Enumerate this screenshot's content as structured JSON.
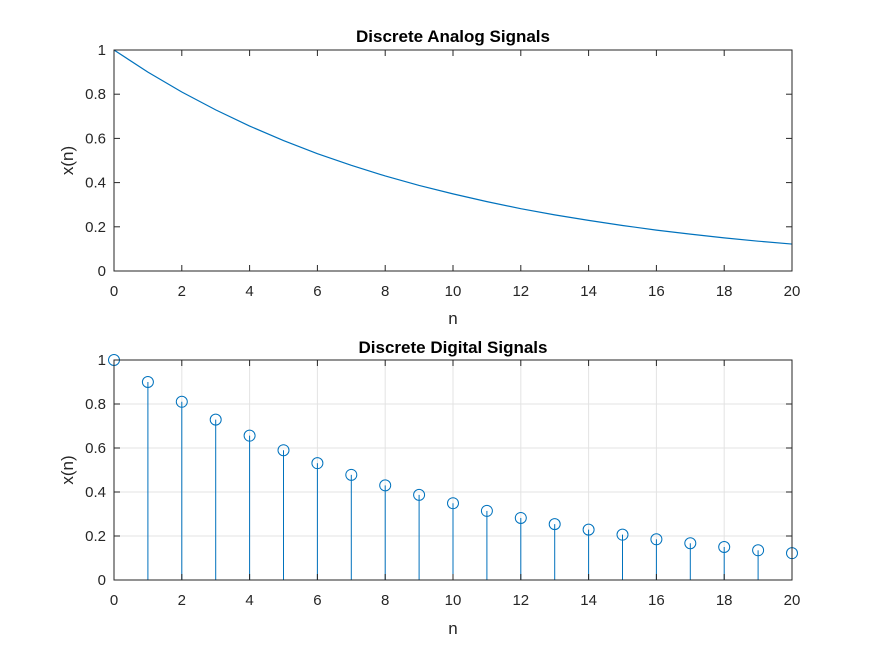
{
  "chart_data": [
    {
      "type": "line",
      "title": "Discrete Analog Signals",
      "xlabel": "n",
      "ylabel": "x(n)",
      "xlim": [
        0,
        20
      ],
      "ylim": [
        0,
        1
      ],
      "grid": false,
      "xticks": [
        "0",
        "2",
        "4",
        "6",
        "8",
        "10",
        "12",
        "14",
        "16",
        "18",
        "20"
      ],
      "yticks": [
        "0",
        "0.2",
        "0.4",
        "0.6",
        "0.8",
        "1"
      ],
      "color": "#0072BD",
      "series": [
        {
          "x": [
            0,
            1,
            2,
            3,
            4,
            5,
            6,
            7,
            8,
            9,
            10,
            11,
            12,
            13,
            14,
            15,
            16,
            17,
            18,
            19,
            20
          ],
          "values": [
            1.0,
            0.9,
            0.81,
            0.729,
            0.656,
            0.59,
            0.531,
            0.478,
            0.43,
            0.387,
            0.349,
            0.314,
            0.282,
            0.254,
            0.229,
            0.206,
            0.185,
            0.167,
            0.15,
            0.135,
            0.122
          ]
        }
      ]
    },
    {
      "type": "stem",
      "title": "Discrete Digital Signals",
      "xlabel": "n",
      "ylabel": "x(n)",
      "xlim": [
        0,
        20
      ],
      "ylim": [
        0,
        1
      ],
      "grid": true,
      "xticks": [
        "0",
        "2",
        "4",
        "6",
        "8",
        "10",
        "12",
        "14",
        "16",
        "18",
        "20"
      ],
      "yticks": [
        "0",
        "0.2",
        "0.4",
        "0.6",
        "0.8",
        "1"
      ],
      "color": "#0072BD",
      "series": [
        {
          "x": [
            0,
            1,
            2,
            3,
            4,
            5,
            6,
            7,
            8,
            9,
            10,
            11,
            12,
            13,
            14,
            15,
            16,
            17,
            18,
            19,
            20
          ],
          "values": [
            1.0,
            0.9,
            0.81,
            0.729,
            0.656,
            0.59,
            0.531,
            0.478,
            0.43,
            0.387,
            0.349,
            0.314,
            0.282,
            0.254,
            0.229,
            0.206,
            0.185,
            0.167,
            0.15,
            0.135,
            0.122
          ]
        }
      ]
    }
  ]
}
